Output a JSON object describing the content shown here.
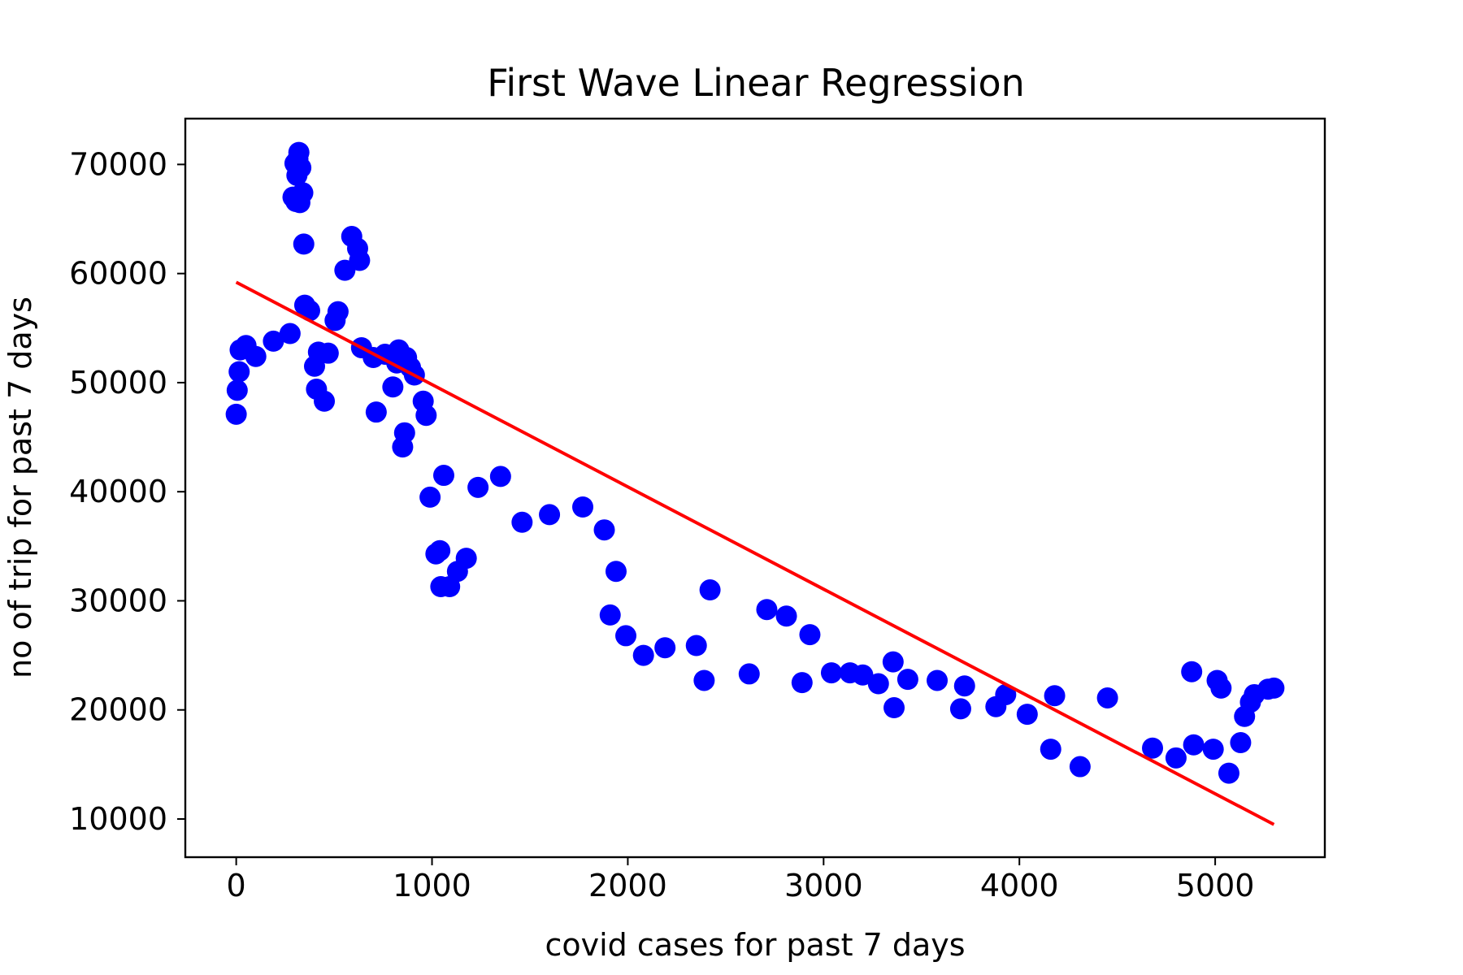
{
  "chart_data": {
    "type": "scatter",
    "title": "First Wave Linear Regression",
    "xlabel": "covid cases for past 7 days",
    "ylabel": "no of trip for past 7 days",
    "xlim": [
      -260,
      5560
    ],
    "ylim": [
      6500,
      74200
    ],
    "xticks": [
      0,
      1000,
      2000,
      3000,
      4000,
      5000
    ],
    "yticks": [
      10000,
      20000,
      30000,
      40000,
      50000,
      60000,
      70000
    ],
    "xtick_labels": [
      "0",
      "1000",
      "2000",
      "3000",
      "4000",
      "5000"
    ],
    "ytick_labels": [
      "10000",
      "20000",
      "30000",
      "40000",
      "50000",
      "60000",
      "70000"
    ],
    "grid": false,
    "series": [
      {
        "kind": "scatter",
        "color": "#0000ff",
        "points": [
          [
            0,
            47100
          ],
          [
            5,
            49300
          ],
          [
            15,
            51000
          ],
          [
            20,
            53000
          ],
          [
            50,
            53400
          ],
          [
            100,
            52400
          ],
          [
            190,
            53800
          ],
          [
            275,
            54500
          ],
          [
            290,
            67000
          ],
          [
            300,
            70100
          ],
          [
            305,
            66600
          ],
          [
            310,
            69000
          ],
          [
            315,
            70500
          ],
          [
            320,
            71100
          ],
          [
            325,
            66500
          ],
          [
            330,
            69700
          ],
          [
            340,
            67400
          ],
          [
            345,
            62700
          ],
          [
            350,
            57100
          ],
          [
            375,
            56600
          ],
          [
            400,
            51500
          ],
          [
            410,
            49400
          ],
          [
            420,
            52800
          ],
          [
            450,
            48300
          ],
          [
            470,
            52700
          ],
          [
            505,
            55700
          ],
          [
            520,
            56500
          ],
          [
            555,
            60300
          ],
          [
            590,
            63400
          ],
          [
            620,
            62300
          ],
          [
            630,
            61200
          ],
          [
            640,
            53200
          ],
          [
            700,
            52300
          ],
          [
            715,
            47300
          ],
          [
            760,
            52600
          ],
          [
            800,
            49600
          ],
          [
            820,
            51800
          ],
          [
            830,
            53000
          ],
          [
            850,
            44100
          ],
          [
            860,
            45400
          ],
          [
            870,
            52300
          ],
          [
            890,
            51400
          ],
          [
            910,
            50700
          ],
          [
            955,
            48300
          ],
          [
            970,
            47000
          ],
          [
            990,
            39500
          ],
          [
            1020,
            34300
          ],
          [
            1040,
            34600
          ],
          [
            1045,
            31300
          ],
          [
            1060,
            41500
          ],
          [
            1090,
            31300
          ],
          [
            1130,
            32700
          ],
          [
            1175,
            33900
          ],
          [
            1235,
            40400
          ],
          [
            1350,
            41400
          ],
          [
            1460,
            37200
          ],
          [
            1600,
            37900
          ],
          [
            1770,
            38600
          ],
          [
            1880,
            36500
          ],
          [
            1910,
            28700
          ],
          [
            1940,
            32700
          ],
          [
            1990,
            26800
          ],
          [
            2080,
            25000
          ],
          [
            2190,
            25700
          ],
          [
            2350,
            25900
          ],
          [
            2390,
            22700
          ],
          [
            2420,
            31000
          ],
          [
            2620,
            23300
          ],
          [
            2710,
            29200
          ],
          [
            2810,
            28600
          ],
          [
            2890,
            22500
          ],
          [
            2930,
            26900
          ],
          [
            3040,
            23400
          ],
          [
            3135,
            23400
          ],
          [
            3200,
            23200
          ],
          [
            3280,
            22400
          ],
          [
            3355,
            24400
          ],
          [
            3360,
            20200
          ],
          [
            3430,
            22800
          ],
          [
            3580,
            22700
          ],
          [
            3700,
            20100
          ],
          [
            3720,
            22200
          ],
          [
            3880,
            20300
          ],
          [
            3930,
            21400
          ],
          [
            4040,
            19600
          ],
          [
            4160,
            16400
          ],
          [
            4180,
            21300
          ],
          [
            4310,
            14800
          ],
          [
            4450,
            21100
          ],
          [
            4680,
            16500
          ],
          [
            4800,
            15600
          ],
          [
            4880,
            23500
          ],
          [
            4890,
            16800
          ],
          [
            4990,
            16400
          ],
          [
            5010,
            22700
          ],
          [
            5030,
            22000
          ],
          [
            5070,
            14200
          ],
          [
            5130,
            17000
          ],
          [
            5150,
            19400
          ],
          [
            5180,
            20700
          ],
          [
            5200,
            21400
          ],
          [
            5270,
            21900
          ],
          [
            5300,
            22000
          ]
        ]
      },
      {
        "kind": "line",
        "color": "#ff0000",
        "x": [
          0,
          5300
        ],
        "y": [
          59200,
          9500
        ]
      }
    ]
  }
}
